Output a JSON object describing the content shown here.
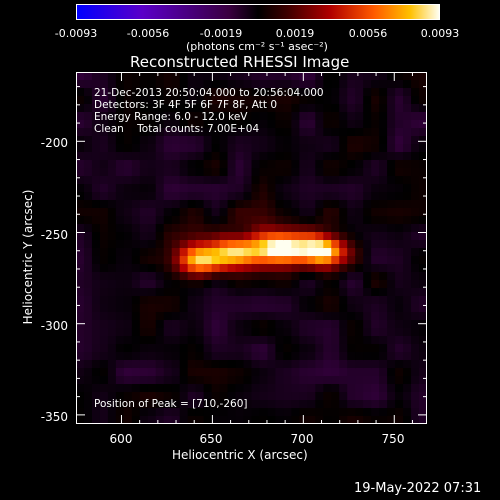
{
  "colorbar": {
    "ticks": [
      "-0.0093",
      "-0.0056",
      "-0.0019",
      "0.0019",
      "0.0056",
      "0.0093"
    ],
    "unit": "(photons cm⁻² s⁻¹ asec⁻²)"
  },
  "chart_data": {
    "type": "heatmap",
    "title": "Reconstructed RHESSI Image",
    "xlabel": "Heliocentric X (arcsec)",
    "ylabel": "Heliocentric Y (arcsec)",
    "xlim": [
      575,
      768
    ],
    "ylim": [
      -355,
      -162
    ],
    "x_ticks": [
      "600",
      "650",
      "700",
      "750"
    ],
    "y_ticks": [
      "-200",
      "-250",
      "-300",
      "-350"
    ],
    "clim": [
      -0.0093,
      0.0093
    ],
    "sources": [
      {
        "x": 643,
        "y": -265,
        "peak": 0.0072
      },
      {
        "x": 664,
        "y": -261,
        "peak": 0.0076
      },
      {
        "x": 688,
        "y": -259,
        "peak": 0.0086
      },
      {
        "x": 710,
        "y": -260,
        "peak": 0.0093
      }
    ]
  },
  "annotations": {
    "lines": [
      "21-Dec-2013 20:50:04.000 to 20:56:04.000",
      "Detectors: 3F 4F 5F 6F 7F 8F, Att 0",
      "Energy Range: 6.0 - 12.0 keV",
      "Clean    Total counts: 7.00E+04"
    ],
    "peak": "Position of Peak = [710,-260]"
  },
  "timestamp": "19-May-2022 07:31"
}
